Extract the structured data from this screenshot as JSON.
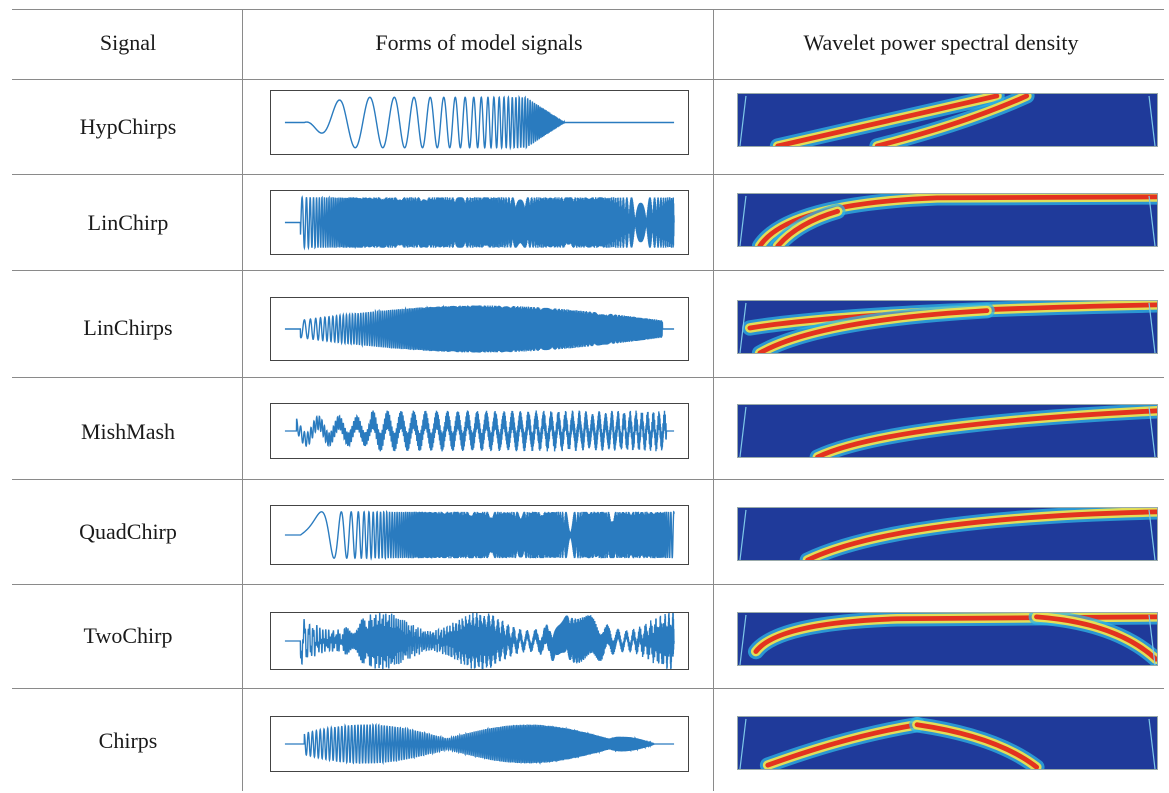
{
  "headers": {
    "signal": "Signal",
    "forms": "Forms of model signals",
    "wpsd": "Wavelet power spectral density"
  },
  "rows": [
    {
      "signal": "HypChirps"
    },
    {
      "signal": "LinChirp"
    },
    {
      "signal": "LinChirps"
    },
    {
      "signal": "MishMash"
    },
    {
      "signal": "QuadChirp"
    },
    {
      "signal": "TwoChirp"
    },
    {
      "signal": "Chirps"
    }
  ],
  "colors": {
    "waveform": "#2a7bbf",
    "spectrum_background": "#1f3a9a",
    "rule_lines": "#8a8a8a"
  }
}
